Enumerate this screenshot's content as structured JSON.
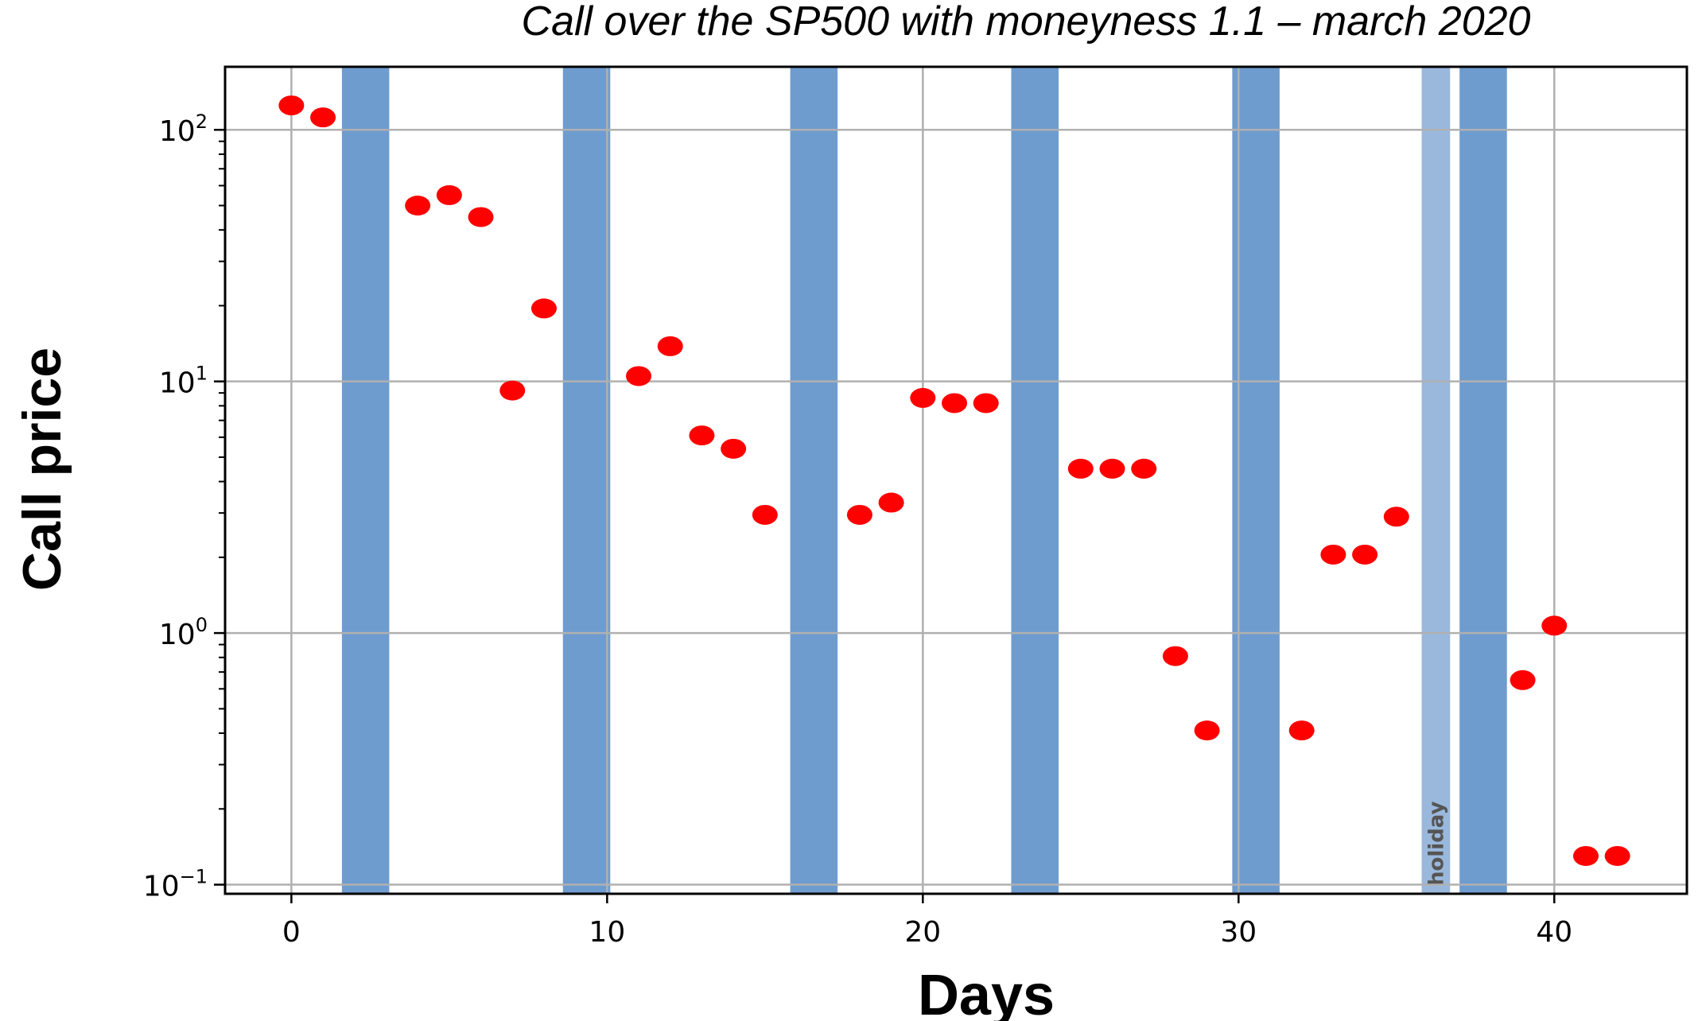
{
  "chart_data": {
    "type": "scatter",
    "title": "Call over the SP500 with moneyness 1.1 – march 2020",
    "xlabel": "Days",
    "ylabel": "Call price",
    "xlim": [
      -2.1,
      44.2
    ],
    "ylim": [
      0.092,
      178
    ],
    "yscale": "log",
    "grid": true,
    "x_ticks": [
      0,
      10,
      20,
      30,
      40
    ],
    "x_tick_labels": [
      "0",
      "10",
      "20",
      "30",
      "40"
    ],
    "y_ticks": [
      {
        "value": 100,
        "base": "10",
        "exp": "2"
      },
      {
        "value": 10,
        "base": "10",
        "exp": "1"
      },
      {
        "value": 1,
        "base": "10",
        "exp": "0"
      },
      {
        "value": 0.1,
        "base": "10",
        "exp": "−1"
      }
    ],
    "point_color": "#ff0000",
    "band_color": "#6f9ccf",
    "holiday_color": "#9ab8dc",
    "weekend_bands": [
      [
        1.6,
        3.1
      ],
      [
        8.6,
        10.1
      ],
      [
        15.8,
        17.3
      ],
      [
        22.8,
        24.3
      ],
      [
        29.8,
        31.3
      ],
      [
        37.0,
        38.5
      ]
    ],
    "holiday_band": {
      "range": [
        35.8,
        36.7
      ],
      "label": "holiday"
    },
    "series": [
      {
        "x": [
          0,
          1,
          4,
          5,
          6,
          7,
          8,
          11,
          12,
          13,
          14,
          15,
          18,
          19,
          20,
          21,
          22,
          25,
          26,
          27,
          28,
          29,
          32,
          33,
          34,
          35,
          39,
          40,
          41,
          42
        ],
        "y": [
          125,
          112,
          50,
          55,
          45,
          9.2,
          19.5,
          10.5,
          13.8,
          6.1,
          5.4,
          2.95,
          2.95,
          3.3,
          8.6,
          8.2,
          8.2,
          4.5,
          4.5,
          4.5,
          0.81,
          0.41,
          0.41,
          2.05,
          2.05,
          2.9,
          0.65,
          1.07,
          0.13,
          0.13
        ]
      }
    ]
  }
}
